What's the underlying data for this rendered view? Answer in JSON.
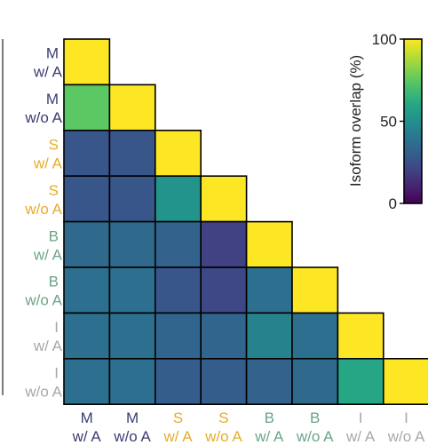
{
  "chart_data": {
    "type": "heatmap",
    "layout": "lower-triangle",
    "title": "",
    "xlabel": "",
    "ylabel": "",
    "categories": [
      {
        "group": "M",
        "sub": "w/ A",
        "color": "#3b3d74"
      },
      {
        "group": "M",
        "sub": "w/o A",
        "color": "#3b3d74"
      },
      {
        "group": "S",
        "sub": "w/ A",
        "color": "#e6ad28"
      },
      {
        "group": "S",
        "sub": "w/o A",
        "color": "#e6ad28"
      },
      {
        "group": "B",
        "sub": "w/ A",
        "color": "#6aa586"
      },
      {
        "group": "B",
        "sub": "w/o A",
        "color": "#6aa586"
      },
      {
        "group": "I",
        "sub": "w/ A",
        "color": "#a8a8a8"
      },
      {
        "group": "I",
        "sub": "w/o A",
        "color": "#a8a8a8"
      }
    ],
    "values": [
      [
        100
      ],
      [
        75,
        100
      ],
      [
        27,
        27,
        100
      ],
      [
        27,
        27,
        52,
        100
      ],
      [
        35,
        35,
        32,
        20,
        100
      ],
      [
        37,
        37,
        27,
        22,
        37,
        100
      ],
      [
        37,
        37,
        33,
        33,
        45,
        37,
        100
      ],
      [
        37,
        37,
        30,
        30,
        32,
        35,
        60,
        100
      ]
    ],
    "colorbar": {
      "label": "Isoform overlap (%)",
      "ticks": [
        0,
        50,
        100
      ],
      "range": [
        0,
        100
      ],
      "colormap": "viridis"
    },
    "legend_position": "top-right"
  }
}
